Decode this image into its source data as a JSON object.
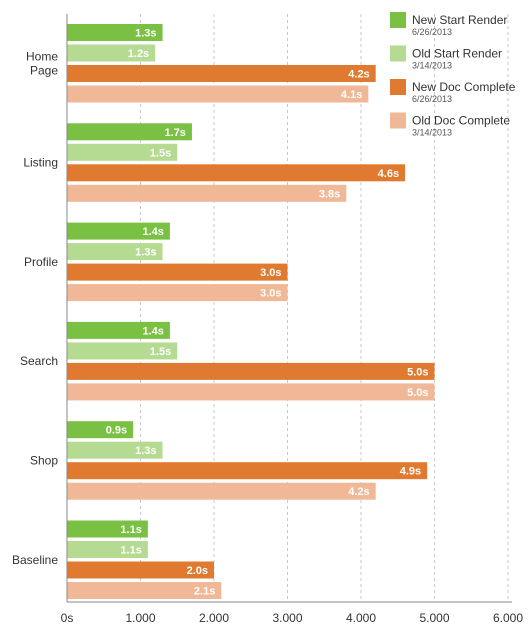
{
  "chart_data": {
    "type": "bar",
    "orientation": "horizontal",
    "categories": [
      [
        "Home",
        "Page"
      ],
      [
        "Listing"
      ],
      [
        "Profile"
      ],
      [
        "Search"
      ],
      [
        "Shop"
      ],
      [
        "Baseline"
      ]
    ],
    "series": [
      {
        "name": "New Start Render",
        "date": "6/26/2013",
        "color": "#7ac143",
        "values": [
          1.3,
          1.7,
          1.4,
          1.4,
          0.9,
          1.1
        ],
        "labels": [
          "1.3s",
          "1.7s",
          "1.4s",
          "1.4s",
          "0.9s",
          "1.1s"
        ]
      },
      {
        "name": "Old Start Render",
        "date": "3/14/2013",
        "color": "#b5db92",
        "values": [
          1.2,
          1.5,
          1.3,
          1.5,
          1.3,
          1.1
        ],
        "labels": [
          "1.2s",
          "1.5s",
          "1.3s",
          "1.5s",
          "1.3s",
          "1.1s"
        ]
      },
      {
        "name": "New Doc Complete",
        "date": "6/26/2013",
        "color": "#e07a30",
        "values": [
          4.2,
          4.6,
          3.0,
          5.0,
          4.9,
          2.0
        ],
        "labels": [
          "4.2s",
          "4.6s",
          "3.0s",
          "5.0s",
          "4.9s",
          "2.0s"
        ]
      },
      {
        "name": "Old Doc Complete",
        "date": "3/14/2013",
        "color": "#f0b896",
        "values": [
          4.1,
          3.8,
          3.0,
          5.0,
          4.2,
          2.1
        ],
        "labels": [
          "4.1s",
          "3.8s",
          "3.0s",
          "5.0s",
          "4.2s",
          "2.1s"
        ]
      }
    ],
    "x_ticks": [
      {
        "value": 0,
        "label": "0s"
      },
      {
        "value": 1,
        "label": "1.000"
      },
      {
        "value": 2,
        "label": "2.000"
      },
      {
        "value": 3,
        "label": "3.000"
      },
      {
        "value": 4,
        "label": "4.000"
      },
      {
        "value": 5,
        "label": "5.000"
      },
      {
        "value": 6,
        "label": "6.000"
      }
    ],
    "xlim": [
      0,
      6
    ],
    "grid": "vertical dashed",
    "legend_position": "top-right",
    "title": "",
    "xlabel": "",
    "ylabel": ""
  }
}
